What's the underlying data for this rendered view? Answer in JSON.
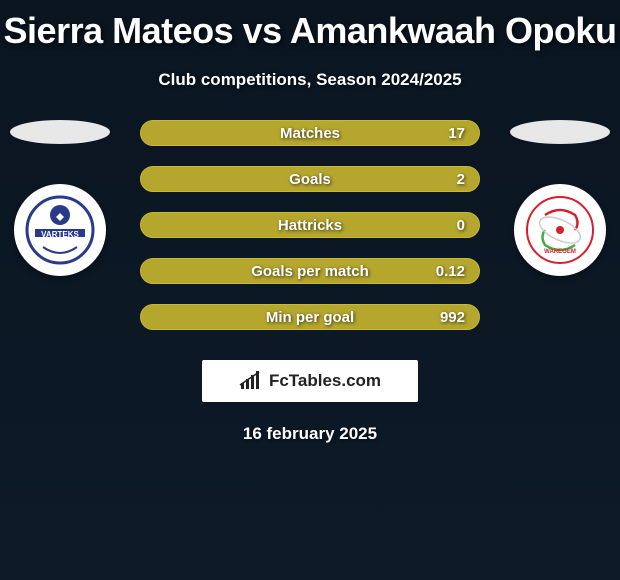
{
  "title": "Sierra Mateos vs Amankwaah Opoku",
  "subtitle": "Club competitions, Season 2024/2025",
  "date": "16 february 2025",
  "watermark_text": "FcTables.com",
  "colors": {
    "bar_fill": "#b5a62e",
    "bar_border": "#c9b933",
    "background_top": "#0a1520",
    "background_bottom": "#0d1a28",
    "text": "#ffffff"
  },
  "stats": [
    {
      "label": "Matches",
      "right_value": "17",
      "left_pct": 5,
      "right_pct": 95
    },
    {
      "label": "Goals",
      "right_value": "2",
      "left_pct": 5,
      "right_pct": 95
    },
    {
      "label": "Hattricks",
      "right_value": "0",
      "left_pct": 50,
      "right_pct": 50
    },
    {
      "label": "Goals per match",
      "right_value": "0.12",
      "left_pct": 5,
      "right_pct": 95
    },
    {
      "label": "Min per goal",
      "right_value": "992",
      "left_pct": 5,
      "right_pct": 95
    }
  ],
  "badges": {
    "left": {
      "name": "club-badge-left",
      "primary": "#2a3a8a",
      "secondary": "#ffffff"
    },
    "right": {
      "name": "club-badge-right",
      "primary": "#d81e2c",
      "secondary": "#3cb043"
    }
  }
}
